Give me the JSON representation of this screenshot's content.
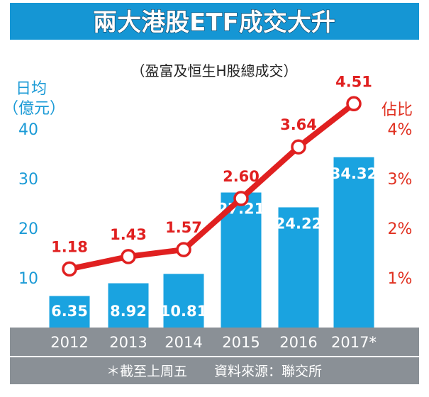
{
  "chart_data": {
    "type": "bar",
    "title": "兩大港股ETF成交大升",
    "subtitle": "（盈富及恒生H股總成交）",
    "ylabel_left": [
      "日均",
      "（億元）"
    ],
    "ylabel_right": "佔比",
    "categories": [
      "2012",
      "2013",
      "2014",
      "2015",
      "2016",
      "2017*"
    ],
    "series": [
      {
        "type": "bar",
        "values": [
          6.35,
          8.92,
          10.81,
          27.21,
          24.22,
          34.32
        ],
        "labels": [
          "6.35",
          "8.92",
          "10.81",
          "27.21",
          "24.22",
          "34.32"
        ],
        "axis": "left"
      },
      {
        "type": "line",
        "values": [
          1.18,
          1.43,
          1.57,
          2.6,
          3.64,
          4.51
        ],
        "labels": [
          "1.18",
          "1.43",
          "1.57",
          "2.60",
          "3.64",
          "4.51"
        ],
        "axis": "right"
      }
    ],
    "ylim_left": [
      0,
      40
    ],
    "ylim_right": [
      0,
      4
    ],
    "yticks_left": [
      "10",
      "20",
      "30",
      "40"
    ],
    "yticks_right": [
      "1%",
      "2%",
      "3%",
      "4%"
    ],
    "grid": false,
    "colors": {
      "bar": "#1aa3e0",
      "line": "#e02020",
      "axis_left": "#1a9ad6",
      "axis_right": "#e03020",
      "title_bg": "#1596d4",
      "footer_bg": "#8a9096"
    }
  },
  "footnote": "＊截至上周五　　資料來源：聯交所"
}
